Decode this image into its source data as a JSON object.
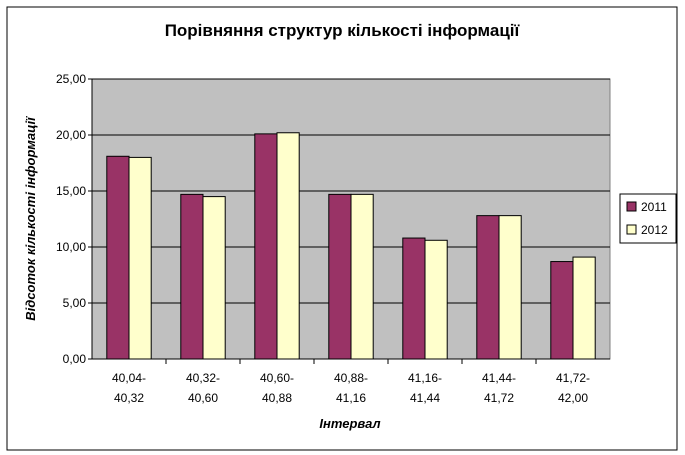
{
  "chart_data": {
    "type": "bar",
    "title": "Порівняння структур кількості інформації",
    "xlabel": "Інтервал",
    "ylabel": "Відсоток кількості інформації",
    "categories": [
      [
        "40,04-",
        "40,32"
      ],
      [
        "40,32-",
        "40,60"
      ],
      [
        "40,60-",
        "40,88"
      ],
      [
        "40,88-",
        "41,16"
      ],
      [
        "41,16-",
        "41,44"
      ],
      [
        "41,44-",
        "41,72"
      ],
      [
        "41,72-",
        "42,00"
      ]
    ],
    "series": [
      {
        "name": "2011",
        "color": "#993366",
        "values": [
          18.1,
          14.7,
          20.1,
          14.7,
          10.8,
          12.8,
          8.7
        ]
      },
      {
        "name": "2012",
        "color": "#FFFFCC",
        "values": [
          18.0,
          14.5,
          20.2,
          14.7,
          10.6,
          12.8,
          9.1
        ]
      }
    ],
    "ylim": [
      0,
      25
    ],
    "yticks": [
      "0,00",
      "5,00",
      "10,00",
      "15,00",
      "20,00",
      "25,00"
    ],
    "ytick_step": 5,
    "grid": true,
    "plot_background": "#C0C0C0",
    "legend_position": "right"
  }
}
